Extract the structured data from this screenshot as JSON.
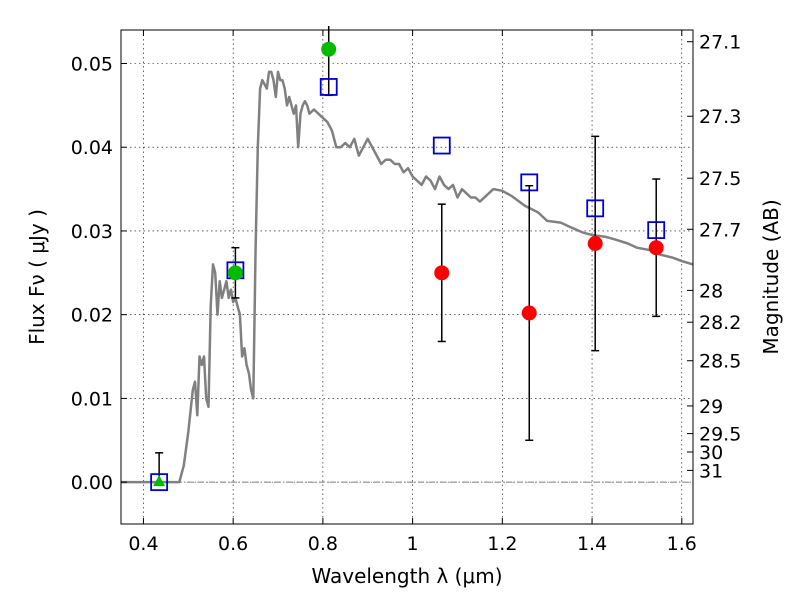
{
  "chart_data": {
    "type": "scatter",
    "title": "",
    "xlabel": "Wavelength  λ (μm)",
    "ylabel": "Flux  Fν  ( μJy )",
    "y2label": "Magnitude (AB)",
    "xlim": [
      0.35,
      1.625
    ],
    "ylim": [
      -0.005,
      0.054
    ],
    "grid": true,
    "xticks": [
      0.4,
      0.6,
      0.8,
      1.0,
      1.2,
      1.4,
      1.6
    ],
    "xtick_labels": [
      "0.4",
      "0.6",
      "0.8",
      "1",
      "1.2",
      "1.4",
      "1.6"
    ],
    "yticks": [
      0.0,
      0.01,
      0.02,
      0.03,
      0.04,
      0.05
    ],
    "ytick_labels": [
      "0.00",
      "0.01",
      "0.02",
      "0.03",
      "0.04",
      "0.05"
    ],
    "y2ticks": [
      {
        "label": "27.1",
        "flux": 0.0526
      },
      {
        "label": "27.3",
        "flux": 0.0437
      },
      {
        "label": "27.5",
        "flux": 0.0363
      },
      {
        "label": "27.7",
        "flux": 0.0302
      },
      {
        "label": "28",
        "flux": 0.0229
      },
      {
        "label": "28.2",
        "flux": 0.0191
      },
      {
        "label": "28.5",
        "flux": 0.0145
      },
      {
        "label": "29",
        "flux": 0.0091
      },
      {
        "label": "29.5",
        "flux": 0.0058
      },
      {
        "label": "30",
        "flux": 0.0036
      },
      {
        "label": "31",
        "flux": 0.0014
      }
    ],
    "colors": {
      "model": "#808080",
      "green_points": "#00bb00",
      "red_points": "#ff0000",
      "model_squares": "#0000cc",
      "errorbars": "#000000",
      "zero_line": "#555555"
    },
    "series": [
      {
        "marker": "line",
        "x": [
          0.35,
          0.46,
          0.47,
          0.48,
          0.49,
          0.5,
          0.51,
          0.515,
          0.52,
          0.525,
          0.53,
          0.535,
          0.54,
          0.545,
          0.55,
          0.555,
          0.56,
          0.565,
          0.57,
          0.575,
          0.58,
          0.585,
          0.59,
          0.595,
          0.6,
          0.605,
          0.61,
          0.615,
          0.62,
          0.625,
          0.63,
          0.635,
          0.64,
          0.645,
          0.65,
          0.655,
          0.66,
          0.665,
          0.67,
          0.675,
          0.68,
          0.685,
          0.69,
          0.695,
          0.7,
          0.705,
          0.71,
          0.715,
          0.72,
          0.725,
          0.73,
          0.735,
          0.74,
          0.745,
          0.75,
          0.755,
          0.76,
          0.765,
          0.77,
          0.78,
          0.79,
          0.8,
          0.81,
          0.82,
          0.83,
          0.84,
          0.85,
          0.86,
          0.87,
          0.88,
          0.89,
          0.9,
          0.91,
          0.92,
          0.93,
          0.94,
          0.95,
          0.96,
          0.97,
          0.98,
          0.99,
          1.0,
          1.01,
          1.02,
          1.03,
          1.04,
          1.05,
          1.06,
          1.07,
          1.08,
          1.09,
          1.1,
          1.11,
          1.12,
          1.13,
          1.14,
          1.15,
          1.18,
          1.2,
          1.22,
          1.25,
          1.28,
          1.3,
          1.33,
          1.35,
          1.38,
          1.4,
          1.43,
          1.45,
          1.48,
          1.5,
          1.53,
          1.55,
          1.58,
          1.6,
          1.625
        ],
        "y": [
          0.0,
          0.0,
          0.0,
          0.0,
          0.002,
          0.006,
          0.011,
          0.012,
          0.008,
          0.015,
          0.014,
          0.015,
          0.01,
          0.009,
          0.021,
          0.026,
          0.025,
          0.02,
          0.024,
          0.022,
          0.023,
          0.024,
          0.022,
          0.023,
          0.0215,
          0.022,
          0.021,
          0.02,
          0.015,
          0.016,
          0.014,
          0.013,
          0.011,
          0.01,
          0.028,
          0.04,
          0.047,
          0.048,
          0.0475,
          0.047,
          0.049,
          0.049,
          0.048,
          0.046,
          0.049,
          0.048,
          0.048,
          0.047,
          0.045,
          0.046,
          0.045,
          0.044,
          0.045,
          0.04,
          0.044,
          0.045,
          0.0455,
          0.045,
          0.044,
          0.0445,
          0.044,
          0.0435,
          0.043,
          0.042,
          0.04,
          0.04,
          0.0405,
          0.04,
          0.041,
          0.039,
          0.04,
          0.041,
          0.04,
          0.039,
          0.038,
          0.0385,
          0.0385,
          0.038,
          0.038,
          0.037,
          0.0375,
          0.0365,
          0.036,
          0.0355,
          0.0365,
          0.036,
          0.035,
          0.0365,
          0.0355,
          0.035,
          0.0355,
          0.034,
          0.035,
          0.0345,
          0.034,
          0.034,
          0.0335,
          0.035,
          0.0348,
          0.0342,
          0.033,
          0.0322,
          0.0312,
          0.031,
          0.0305,
          0.0298,
          0.0295,
          0.0293,
          0.029,
          0.0285,
          0.028,
          0.0277,
          0.0272,
          0.0268,
          0.0264,
          0.026
        ]
      },
      {
        "marker": "circle",
        "points": [
          {
            "x": 0.605,
            "y": 0.025,
            "err": 0.003
          },
          {
            "x": 0.813,
            "y": 0.0517,
            "err": 0.0055
          }
        ]
      },
      {
        "marker": "triangle",
        "points": [
          {
            "x": 0.435,
            "y": 0.0,
            "err_up": 0.0035,
            "err_down": 0.0
          }
        ]
      },
      {
        "marker": "circle",
        "points": [
          {
            "x": 1.065,
            "y": 0.025,
            "err": 0.0082
          },
          {
            "x": 1.26,
            "y": 0.0202,
            "err": 0.0152
          },
          {
            "x": 1.407,
            "y": 0.0285,
            "err": 0.0128
          },
          {
            "x": 1.543,
            "y": 0.028,
            "err": 0.0082
          }
        ]
      },
      {
        "marker": "square",
        "points": [
          {
            "x": 0.435,
            "y": 0.0
          },
          {
            "x": 0.605,
            "y": 0.0253
          },
          {
            "x": 0.813,
            "y": 0.0472
          },
          {
            "x": 1.065,
            "y": 0.0402
          },
          {
            "x": 1.26,
            "y": 0.0358
          },
          {
            "x": 1.407,
            "y": 0.0327
          },
          {
            "x": 1.543,
            "y": 0.0301
          }
        ]
      }
    ]
  }
}
